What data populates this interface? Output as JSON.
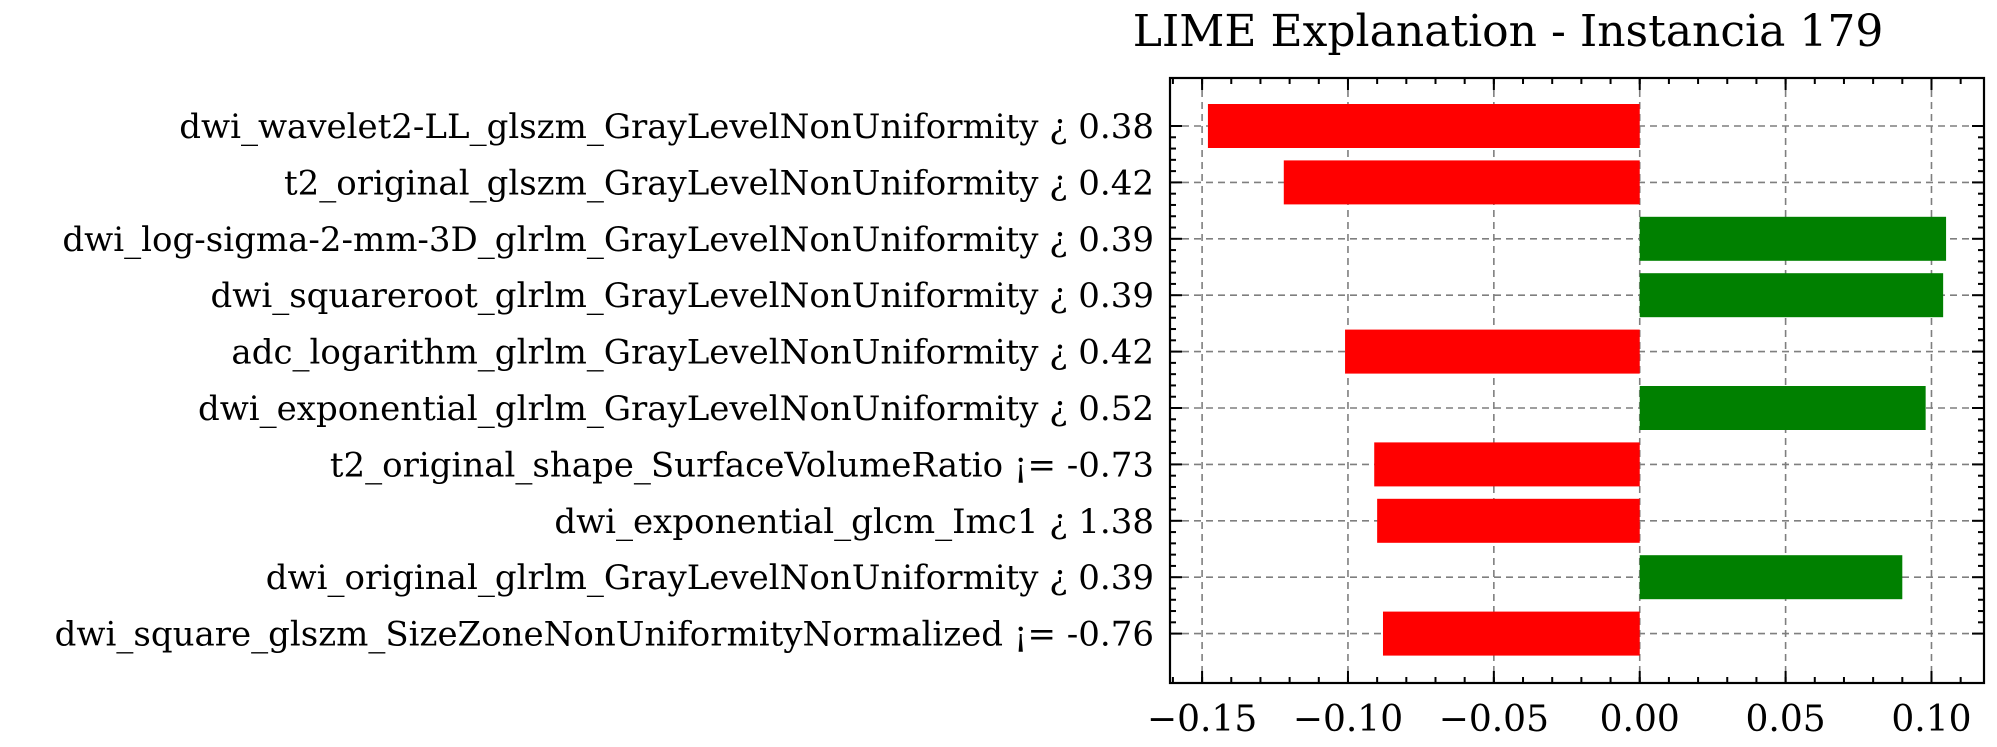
{
  "chart_data": {
    "type": "bar",
    "orientation": "horizontal",
    "title": "LIME Explanation - Instancia 179",
    "xlabel": "",
    "ylabel": "",
    "categories": [
      "dwi_wavelet2-LL_glszm_GrayLevelNonUniformity ¿ 0.38",
      "t2_original_glszm_GrayLevelNonUniformity ¿ 0.42",
      "dwi_log-sigma-2-mm-3D_glrlm_GrayLevelNonUniformity ¿ 0.39",
      "dwi_squareroot_glrlm_GrayLevelNonUniformity ¿ 0.39",
      "adc_logarithm_glrlm_GrayLevelNonUniformity ¿ 0.42",
      "dwi_exponential_glrlm_GrayLevelNonUniformity ¿ 0.52",
      "t2_original_shape_SurfaceVolumeRatio ¡= -0.73",
      "dwi_exponential_glcm_Imc1 ¿ 1.38",
      "dwi_original_glrlm_GrayLevelNonUniformity ¿ 0.39",
      "dwi_square_glszm_SizeZoneNonUniformityNormalized ¡= -0.76"
    ],
    "values": [
      -0.148,
      -0.122,
      0.105,
      0.104,
      -0.101,
      0.098,
      -0.091,
      -0.09,
      0.09,
      -0.088
    ],
    "xlim": [
      -0.161,
      0.118
    ],
    "xticks": [
      -0.15,
      -0.1,
      -0.05,
      0.0,
      0.05,
      0.1
    ],
    "xtick_labels": [
      "−0.15",
      "−0.10",
      "−0.05",
      "0.00",
      "0.05",
      "0.10"
    ],
    "grid": true,
    "colors": {
      "positive": "#008000",
      "negative": "#ff0000"
    }
  }
}
